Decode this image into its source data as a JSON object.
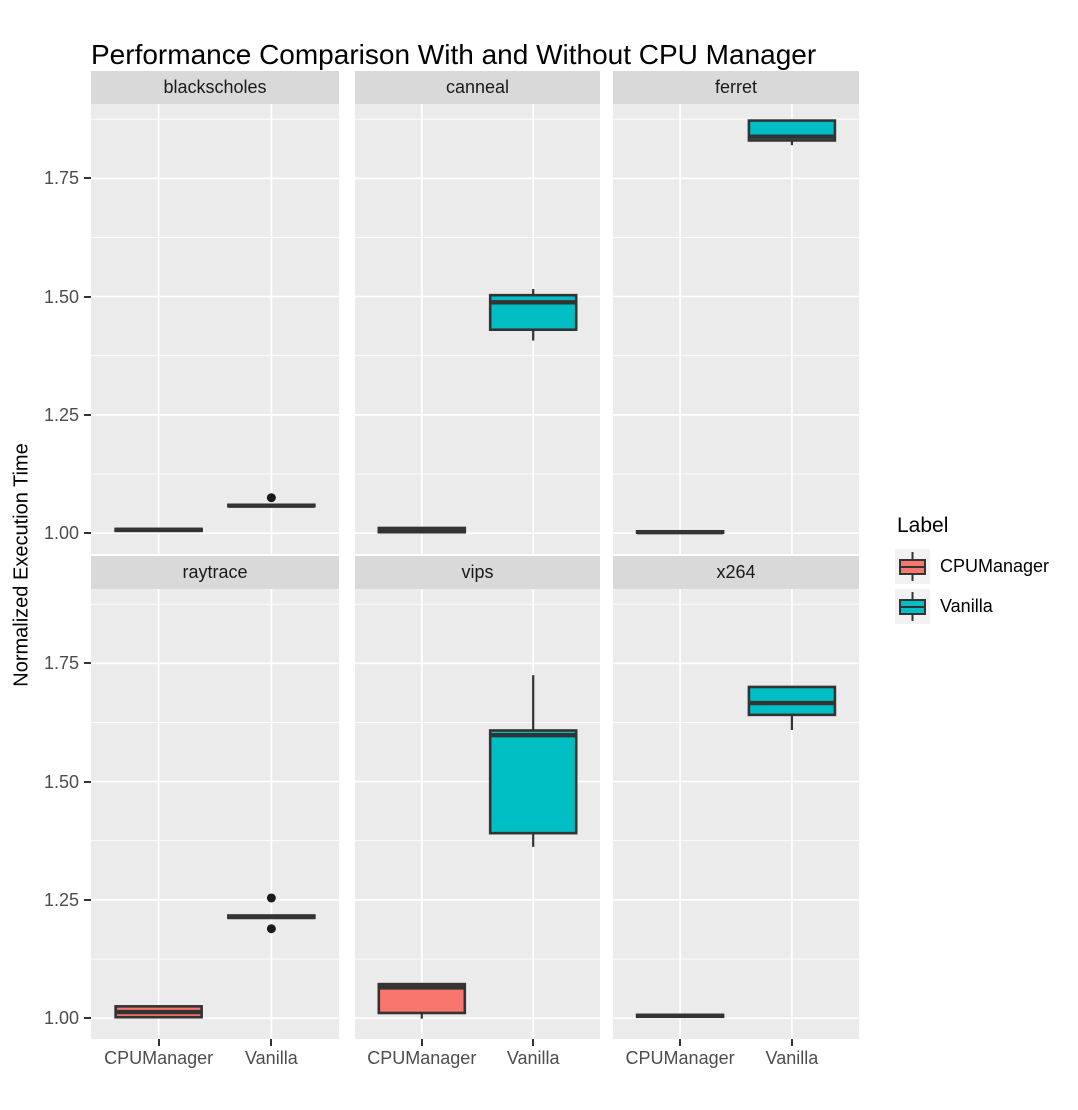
{
  "chart_data": {
    "type": "boxplot",
    "title": "Performance Comparison With and Without CPU Manager",
    "xlabel": "",
    "ylabel": "Normalized Execution Time",
    "categories": [
      "CPUManager",
      "Vanilla"
    ],
    "y_ticks": [
      1.0,
      1.25,
      1.5,
      1.75
    ],
    "y_minor_ticks": [
      1.125,
      1.375,
      1.625,
      1.875
    ],
    "y_domain": [
      0.956,
      1.907
    ],
    "grid": true,
    "facet_layout": {
      "rows": 2,
      "cols": 3
    },
    "legend": {
      "title": "Label",
      "position": "right",
      "entries": [
        {
          "label": "CPUManager",
          "color": "#F8766D"
        },
        {
          "label": "Vanilla",
          "color": "#00BFC4"
        }
      ]
    },
    "colors": {
      "panel_bg": "#EBEBEB",
      "strip_bg": "#D9D9D9",
      "gridline": "#FFFFFF",
      "box_stroke": "#333333",
      "outlier": "#1A1A1A",
      "axis_text": "#4D4D4D"
    },
    "facets": [
      {
        "name": "blackscholes",
        "boxes": [
          {
            "group": "CPUManager",
            "whisker_low": 1.004,
            "q1": 1.005,
            "median": 1.007,
            "q3": 1.009,
            "whisker_high": 1.01,
            "outliers": []
          },
          {
            "group": "Vanilla",
            "whisker_low": 1.056,
            "q1": 1.057,
            "median": 1.058,
            "q3": 1.06,
            "whisker_high": 1.061,
            "outliers": [
              1.075
            ]
          }
        ]
      },
      {
        "name": "canneal",
        "boxes": [
          {
            "group": "CPUManager",
            "whisker_low": 1.0,
            "q1": 1.002,
            "median": 1.006,
            "q3": 1.011,
            "whisker_high": 1.013,
            "outliers": []
          },
          {
            "group": "Vanilla",
            "whisker_low": 1.407,
            "q1": 1.43,
            "median": 1.488,
            "q3": 1.503,
            "whisker_high": 1.516,
            "outliers": []
          }
        ]
      },
      {
        "name": "ferret",
        "boxes": [
          {
            "group": "CPUManager",
            "whisker_low": 1.0,
            "q1": 1.001,
            "median": 1.002,
            "q3": 1.004,
            "whisker_high": 1.005,
            "outliers": []
          },
          {
            "group": "Vanilla",
            "whisker_low": 1.82,
            "q1": 1.83,
            "median": 1.838,
            "q3": 1.872,
            "whisker_high": 1.874,
            "outliers": []
          }
        ]
      },
      {
        "name": "raytrace",
        "boxes": [
          {
            "group": "CPUManager",
            "whisker_low": 1.0,
            "q1": 1.002,
            "median": 1.013,
            "q3": 1.025,
            "whisker_high": 1.027,
            "outliers": []
          },
          {
            "group": "Vanilla",
            "whisker_low": 1.211,
            "q1": 1.212,
            "median": 1.214,
            "q3": 1.217,
            "whisker_high": 1.218,
            "outliers": [
              1.254,
              1.189
            ]
          }
        ]
      },
      {
        "name": "vips",
        "boxes": [
          {
            "group": "CPUManager",
            "whisker_low": 0.999,
            "q1": 1.011,
            "median": 1.065,
            "q3": 1.072,
            "whisker_high": 1.074,
            "outliers": []
          },
          {
            "group": "Vanilla",
            "whisker_low": 1.362,
            "q1": 1.391,
            "median": 1.598,
            "q3": 1.608,
            "whisker_high": 1.725,
            "outliers": []
          }
        ]
      },
      {
        "name": "x264",
        "boxes": [
          {
            "group": "CPUManager",
            "whisker_low": 1.002,
            "q1": 1.003,
            "median": 1.005,
            "q3": 1.007,
            "whisker_high": 1.008,
            "outliers": []
          },
          {
            "group": "Vanilla",
            "whisker_low": 1.609,
            "q1": 1.641,
            "median": 1.666,
            "q3": 1.7,
            "whisker_high": 1.701,
            "outliers": []
          }
        ]
      }
    ]
  }
}
